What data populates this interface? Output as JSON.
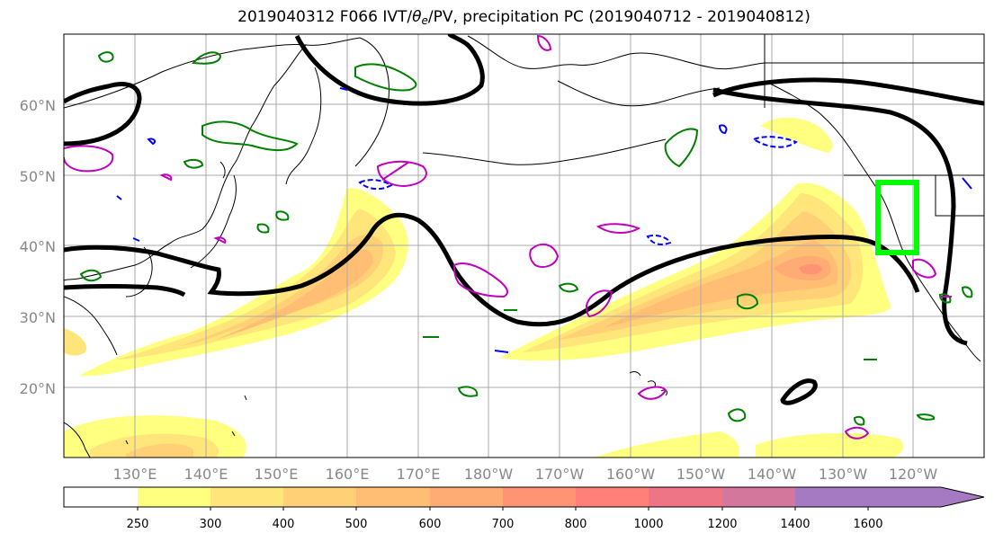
{
  "title": {
    "prefix": "2019040312 F066 IVT/",
    "theta": "θ",
    "theta_sub": "e",
    "suffix": "/PV, precipitation PC (2019040712 - 2019040812)"
  },
  "map": {
    "lat_labels": [
      "20°N",
      "30°N",
      "40°N",
      "50°N",
      "60°N"
    ],
    "lon_labels": [
      "130°E",
      "140°E",
      "150°E",
      "160°E",
      "170°E",
      "180°W",
      "170°W",
      "160°W",
      "150°W",
      "140°W",
      "130°W",
      "120°W"
    ],
    "colors": {
      "coast": "#000000",
      "theta_e_contour": "#000000",
      "pv_positive": "#008000",
      "pv_negative": "#0000ff",
      "pv_magenta": "#bf00bf",
      "precip_box": "#00ff00"
    }
  },
  "colorbar": {
    "ticks": [
      "250",
      "300",
      "400",
      "500",
      "600",
      "700",
      "800",
      "1000",
      "1200",
      "1400",
      "1600"
    ],
    "colors": [
      "#ffffff",
      "#ffff80",
      "#ffe57a",
      "#ffd076",
      "#ffbe74",
      "#ffab74",
      "#ff9475",
      "#ff7f79",
      "#ee7585",
      "#d3789c",
      "#a67ac2"
    ]
  }
}
